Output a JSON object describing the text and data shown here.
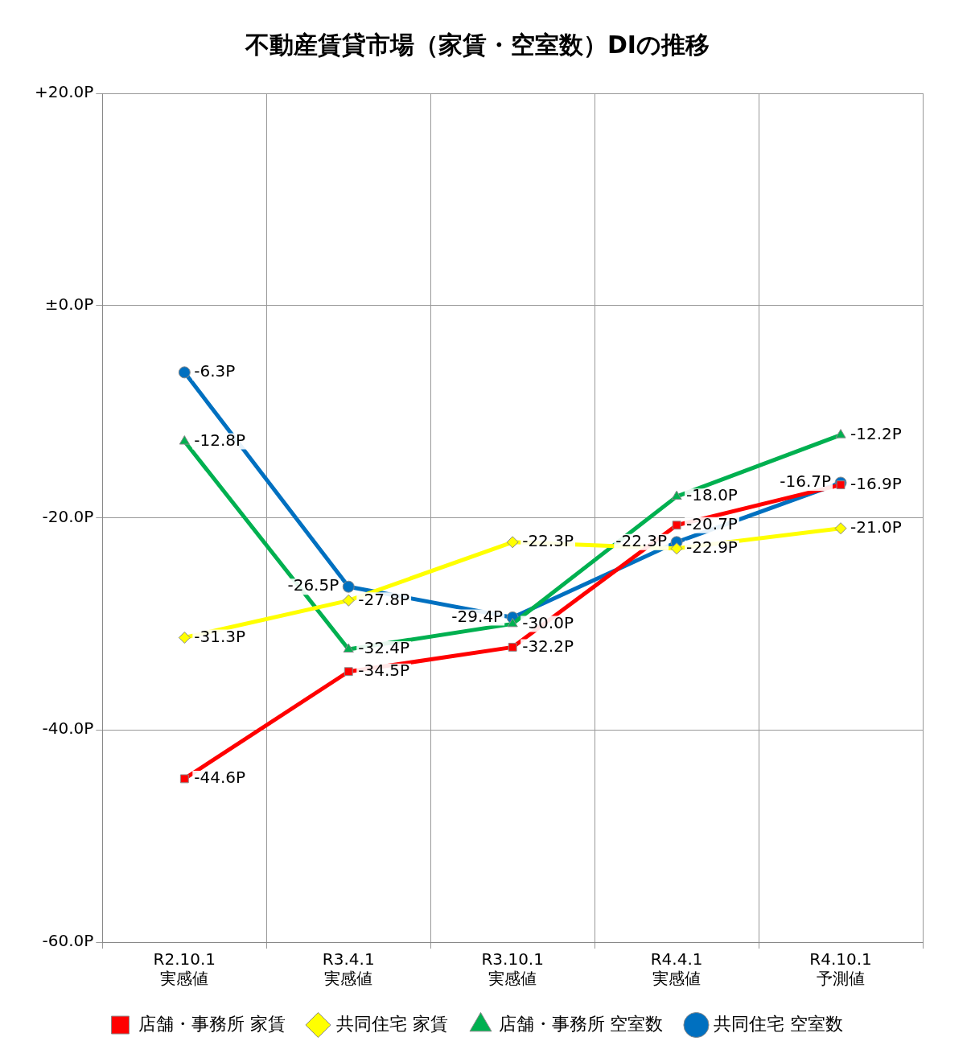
{
  "chart_data": {
    "type": "line",
    "title": "不動産賃貸市場（家賃・空室数）DIの推移",
    "categories": [
      "R2.10.1 実感値",
      "R3.4.1 実感値",
      "R3.10.1 実感値",
      "R4.4.1 実感値",
      "R4.10.1 予測値"
    ],
    "series": [
      {
        "name": "店舗・事務所 家賃",
        "color": "#ff0000",
        "marker": "square",
        "values": [
          -44.6,
          -34.5,
          -32.2,
          -20.7,
          -16.9
        ],
        "value_labels": [
          "-44.6P",
          "-34.5P",
          "-32.2P",
          "-20.7P",
          "-16.9P"
        ]
      },
      {
        "name": "共同住宅 家賃",
        "color": "#ffff00",
        "marker": "diamond",
        "values": [
          -31.3,
          -27.8,
          -22.3,
          -22.9,
          -21.0
        ],
        "value_labels": [
          "-31.3P",
          "-27.8P",
          "-22.3P",
          "-22.9P",
          "-21.0P"
        ]
      },
      {
        "name": "店舗・事務所 空室数",
        "color": "#00b050",
        "marker": "triangle",
        "values": [
          -12.8,
          -32.4,
          -30.0,
          -18.0,
          -12.2
        ],
        "value_labels": [
          "-12.8P",
          "-32.4P",
          "-30.0P",
          "-18.0P",
          "-12.2P"
        ]
      },
      {
        "name": "共同住宅 空室数",
        "color": "#0070c0",
        "marker": "circle",
        "values": [
          -6.3,
          -26.5,
          -29.4,
          -22.3,
          -16.7
        ],
        "value_labels": [
          "-6.3P",
          "-26.5P",
          "-29.4P",
          "-22.3P",
          "-16.7P"
        ]
      }
    ],
    "ylim": [
      -60,
      20
    ],
    "yticks": [
      {
        "value": -60,
        "label": "-60.0P"
      },
      {
        "value": -40,
        "label": "-40.0P"
      },
      {
        "value": -20,
        "label": "-20.0P"
      },
      {
        "value": 0,
        "label": "±0.0P"
      },
      {
        "value": 20,
        "label": "+20.0P"
      }
    ],
    "grid": true,
    "legend": "bottom",
    "line_style": "solid"
  }
}
